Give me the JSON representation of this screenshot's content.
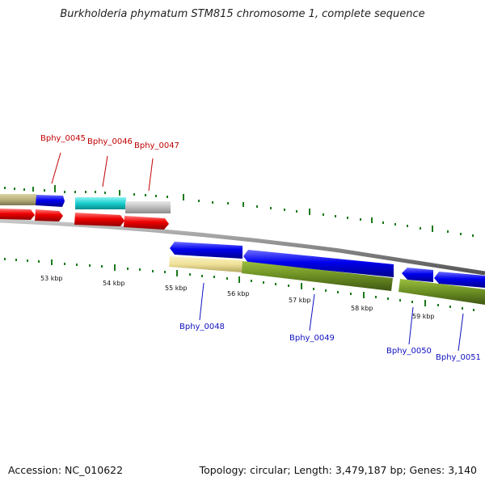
{
  "title": "Burkholderia phymatum STM815 chromosome 1, complete sequence",
  "footer": {
    "accession": "Accession: NC_010622",
    "summary": "Topology: circular; Length: 3,479,187 bp; Genes: 3,140"
  },
  "colors": {
    "gene_red_label": "#c00000",
    "gene_blue_label": "#1010c0",
    "tick_green": "#1a7a1a",
    "backbone": "#888888"
  },
  "scale_labels": [
    "53 kbp",
    "54 kbp",
    "55 kbp",
    "56 kbp",
    "57 kbp",
    "58 kbp",
    "59 kbp"
  ],
  "upper_genes": [
    "Bphy_0045",
    "Bphy_0046",
    "Bphy_0047"
  ],
  "lower_genes": [
    "Bphy_0048",
    "Bphy_0049",
    "Bphy_0050",
    "Bphy_0051"
  ]
}
